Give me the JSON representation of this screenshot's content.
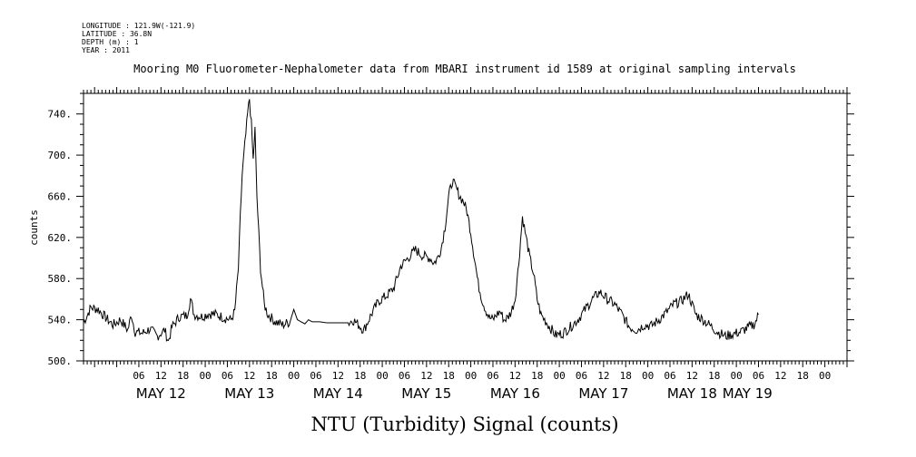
{
  "header": {
    "longitude": "LONGITUDE : 121.9W(-121.9)",
    "latitude": "LATITUDE : 36.8N",
    "depth": "DEPTH (m) : 1",
    "year": "YEAR : 2011"
  },
  "chart_data": {
    "type": "line",
    "title": "Mooring M0 Fluorometer-Nephalometer data from MBARI instrument id 1589 at original sampling intervals",
    "xlabel": "NTU (Turbidity) Signal (counts)",
    "ylabel": "counts",
    "ylim": [
      500,
      760
    ],
    "yticks": [
      500,
      540,
      580,
      620,
      660,
      700,
      740
    ],
    "ytick_labels": [
      "500.",
      "540.",
      "580.",
      "620.",
      "660.",
      "700.",
      "740."
    ],
    "xlim_hours": [
      -9,
      198
    ],
    "hour_ticks": [
      {
        "h": 6,
        "label": "06"
      },
      {
        "h": 12,
        "label": "12"
      },
      {
        "h": 18,
        "label": "18"
      },
      {
        "h": 24,
        "label": "00"
      },
      {
        "h": 30,
        "label": "06"
      },
      {
        "h": 36,
        "label": "12"
      },
      {
        "h": 42,
        "label": "18"
      },
      {
        "h": 48,
        "label": "00"
      },
      {
        "h": 54,
        "label": "06"
      },
      {
        "h": 60,
        "label": "12"
      },
      {
        "h": 66,
        "label": "18"
      },
      {
        "h": 72,
        "label": "00"
      },
      {
        "h": 78,
        "label": "06"
      },
      {
        "h": 84,
        "label": "12"
      },
      {
        "h": 90,
        "label": "18"
      },
      {
        "h": 96,
        "label": "00"
      },
      {
        "h": 102,
        "label": "06"
      },
      {
        "h": 108,
        "label": "12"
      },
      {
        "h": 114,
        "label": "18"
      },
      {
        "h": 120,
        "label": "00"
      },
      {
        "h": 126,
        "label": "06"
      },
      {
        "h": 132,
        "label": "12"
      },
      {
        "h": 138,
        "label": "18"
      },
      {
        "h": 144,
        "label": "00"
      },
      {
        "h": 150,
        "label": "06"
      },
      {
        "h": 156,
        "label": "12"
      },
      {
        "h": 162,
        "label": "18"
      },
      {
        "h": 168,
        "label": "00"
      },
      {
        "h": 174,
        "label": "06"
      },
      {
        "h": 180,
        "label": "12"
      },
      {
        "h": 186,
        "label": "18"
      },
      {
        "h": 192,
        "label": "00"
      }
    ],
    "day_labels": [
      {
        "h": 12,
        "label": "MAY 12"
      },
      {
        "h": 36,
        "label": "MAY 13"
      },
      {
        "h": 60,
        "label": "MAY 14"
      },
      {
        "h": 84,
        "label": "MAY 15"
      },
      {
        "h": 108,
        "label": "MAY 16"
      },
      {
        "h": 132,
        "label": "MAY 17"
      },
      {
        "h": 156,
        "label": "MAY 18"
      },
      {
        "h": 171,
        "label": "MAY 19"
      }
    ],
    "series": [
      {
        "x": [
          -9,
          -7,
          -5,
          -3,
          -1,
          1,
          3,
          4,
          5,
          7,
          9,
          11,
          13,
          14,
          15,
          17,
          19,
          20,
          21,
          23,
          25,
          27,
          29,
          31,
          32,
          33,
          33.5,
          34,
          34.5,
          35,
          35.5,
          36,
          36.5,
          37,
          37.5,
          38,
          39,
          40,
          41,
          43,
          45,
          47,
          48,
          49,
          51,
          52,
          53,
          55,
          57,
          59,
          61,
          63,
          64,
          65,
          67,
          69,
          71,
          73,
          75,
          76,
          77,
          79,
          81,
          83,
          85,
          86,
          87,
          88,
          89,
          90,
          91,
          92,
          93,
          94,
          95,
          96,
          97,
          98,
          99,
          100,
          101,
          102,
          103,
          104,
          105,
          106,
          107,
          108,
          109,
          110,
          111,
          112,
          113,
          114,
          115,
          117,
          119,
          121,
          123,
          125,
          127,
          129,
          131,
          133,
          135,
          137,
          139,
          141,
          143,
          145,
          147,
          149,
          151,
          153,
          155,
          157,
          159,
          161,
          163,
          165,
          167,
          169,
          171,
          173,
          174
        ],
        "y": [
          537,
          552,
          550,
          542,
          535,
          540,
          530,
          545,
          528,
          527,
          531,
          524,
          530,
          519,
          533,
          543,
          544,
          560,
          545,
          543,
          546,
          545,
          542,
          540,
          548,
          590,
          640,
          680,
          700,
          720,
          740,
          755,
          730,
          695,
          725,
          660,
          590,
          555,
          545,
          538,
          535,
          538,
          550,
          540,
          536,
          540,
          538,
          538,
          537,
          537,
          537,
          537,
          540,
          537,
          530,
          545,
          558,
          563,
          570,
          580,
          592,
          600,
          608,
          602,
          600,
          595,
          600,
          610,
          630,
          660,
          675,
          668,
          660,
          655,
          645,
          625,
          600,
          575,
          560,
          550,
          542,
          540,
          545,
          548,
          540,
          542,
          548,
          560,
          595,
          640,
          620,
          600,
          585,
          560,
          545,
          535,
          525,
          527,
          533,
          540,
          550,
          560,
          567,
          560,
          555,
          545,
          533,
          530,
          535,
          534,
          540,
          547,
          555,
          558,
          565,
          545,
          540,
          534,
          528,
          524,
          526,
          528,
          532,
          536,
          545
        ]
      }
    ]
  }
}
